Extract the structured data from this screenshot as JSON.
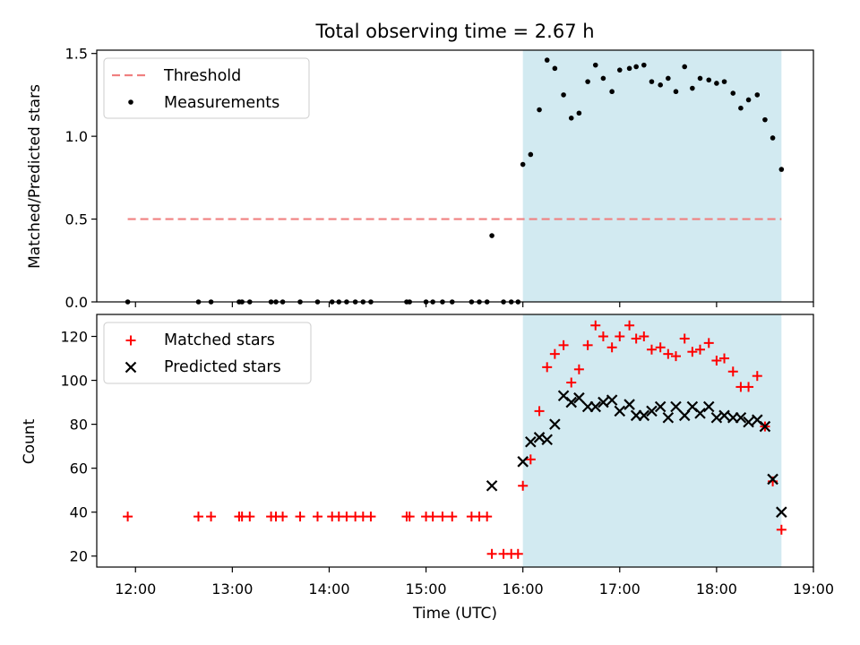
{
  "title": "Total observing time = 2.67 h",
  "colors": {
    "shade": "#add8e6",
    "threshold": "#f08080",
    "measurement": "#000000",
    "matched": "#ff0000",
    "predicted": "#000000"
  },
  "chart_data": [
    {
      "type": "scatter",
      "ylabel": "Matched/Predicted stars",
      "xlabel": "",
      "xlim": [
        11.6,
        19.0
      ],
      "ylim": [
        0,
        1.52
      ],
      "yticks": [
        0.0,
        0.5,
        1.0,
        1.5
      ],
      "ytick_labels": [
        "0.0",
        "0.5",
        "1.0",
        "1.5"
      ],
      "shaded_span": [
        16.0,
        18.67
      ],
      "grid": false,
      "legend_position": "top-left",
      "threshold": {
        "name": "Threshold",
        "value": 0.5,
        "x_range": [
          11.92,
          18.67
        ]
      },
      "series": [
        {
          "name": "Measurements",
          "x": [
            11.92,
            12.65,
            12.78,
            13.07,
            13.1,
            13.18,
            13.4,
            13.45,
            13.52,
            13.7,
            13.88,
            14.03,
            14.1,
            14.18,
            14.27,
            14.35,
            14.43,
            14.8,
            14.83,
            15.0,
            15.07,
            15.17,
            15.27,
            15.47,
            15.55,
            15.63,
            15.68,
            15.8,
            15.88,
            15.95,
            16.0,
            16.08,
            16.17,
            16.25,
            16.33,
            16.42,
            16.5,
            16.58,
            16.67,
            16.75,
            16.83,
            16.92,
            17.0,
            17.1,
            17.17,
            17.25,
            17.33,
            17.42,
            17.5,
            17.58,
            17.67,
            17.75,
            17.83,
            17.92,
            18.0,
            18.08,
            18.17,
            18.25,
            18.33,
            18.42,
            18.5,
            18.58,
            18.67
          ],
          "y": [
            0,
            0,
            0,
            0,
            0,
            0,
            0,
            0,
            0,
            0,
            0,
            0,
            0,
            0,
            0,
            0,
            0,
            0,
            0,
            0,
            0,
            0,
            0,
            0,
            0,
            0,
            0.4,
            0,
            0,
            0,
            0.83,
            0.89,
            1.16,
            1.46,
            1.41,
            1.25,
            1.11,
            1.14,
            1.33,
            1.43,
            1.35,
            1.27,
            1.4,
            1.41,
            1.42,
            1.43,
            1.33,
            1.31,
            1.35,
            1.27,
            1.42,
            1.29,
            1.35,
            1.34,
            1.32,
            1.33,
            1.26,
            1.17,
            1.22,
            1.25,
            1.1,
            0.99,
            0.8
          ]
        }
      ]
    },
    {
      "type": "scatter",
      "ylabel": "Count",
      "xlabel": "Time (UTC)",
      "xlim": [
        11.6,
        19.0
      ],
      "ylim": [
        15,
        130
      ],
      "yticks": [
        20,
        40,
        60,
        80,
        100,
        120
      ],
      "ytick_labels": [
        "20",
        "40",
        "60",
        "80",
        "100",
        "120"
      ],
      "xticks": [
        12,
        13,
        14,
        15,
        16,
        17,
        18,
        19
      ],
      "xtick_labels": [
        "12:00",
        "13:00",
        "14:00",
        "15:00",
        "16:00",
        "17:00",
        "18:00",
        "19:00"
      ],
      "shaded_span": [
        16.0,
        18.67
      ],
      "grid": false,
      "legend_position": "top-left",
      "series": [
        {
          "name": "Matched stars",
          "marker": "plus",
          "x": [
            11.92,
            12.65,
            12.78,
            13.07,
            13.1,
            13.18,
            13.4,
            13.45,
            13.52,
            13.7,
            13.88,
            14.03,
            14.1,
            14.18,
            14.27,
            14.35,
            14.43,
            14.8,
            14.83,
            15.0,
            15.07,
            15.17,
            15.27,
            15.47,
            15.55,
            15.63,
            15.68,
            15.8,
            15.88,
            15.95,
            16.0,
            16.08,
            16.17,
            16.25,
            16.33,
            16.42,
            16.5,
            16.58,
            16.67,
            16.75,
            16.83,
            16.92,
            17.0,
            17.1,
            17.17,
            17.25,
            17.33,
            17.42,
            17.5,
            17.58,
            17.67,
            17.75,
            17.83,
            17.92,
            18.0,
            18.08,
            18.17,
            18.25,
            18.33,
            18.42,
            18.5,
            18.58,
            18.67
          ],
          "y": [
            38,
            38,
            38,
            38,
            38,
            38,
            38,
            38,
            38,
            38,
            38,
            38,
            38,
            38,
            38,
            38,
            38,
            38,
            38,
            38,
            38,
            38,
            38,
            38,
            38,
            38,
            21,
            21,
            21,
            21,
            52,
            64,
            86,
            106,
            112,
            116,
            99,
            105,
            116,
            125,
            120,
            115,
            120,
            125,
            119,
            120,
            114,
            115,
            112,
            111,
            119,
            113,
            114,
            117,
            109,
            110,
            104,
            97,
            97,
            102,
            79,
            54,
            32
          ]
        },
        {
          "name": "Predicted stars",
          "marker": "x",
          "x": [
            15.68,
            16.0,
            16.08,
            16.17,
            16.25,
            16.33,
            16.42,
            16.5,
            16.58,
            16.67,
            16.75,
            16.83,
            16.92,
            17.0,
            17.1,
            17.17,
            17.25,
            17.33,
            17.42,
            17.5,
            17.58,
            17.67,
            17.75,
            17.83,
            17.92,
            18.0,
            18.08,
            18.17,
            18.25,
            18.33,
            18.42,
            18.5,
            18.58,
            18.67
          ],
          "y": [
            52,
            63,
            72,
            74,
            73,
            80,
            93,
            90,
            92,
            88,
            88,
            90,
            91,
            86,
            89,
            84,
            84,
            86,
            88,
            83,
            88,
            84,
            88,
            85,
            88,
            83,
            84,
            83,
            83,
            81,
            82,
            79,
            55,
            40
          ]
        }
      ]
    }
  ]
}
